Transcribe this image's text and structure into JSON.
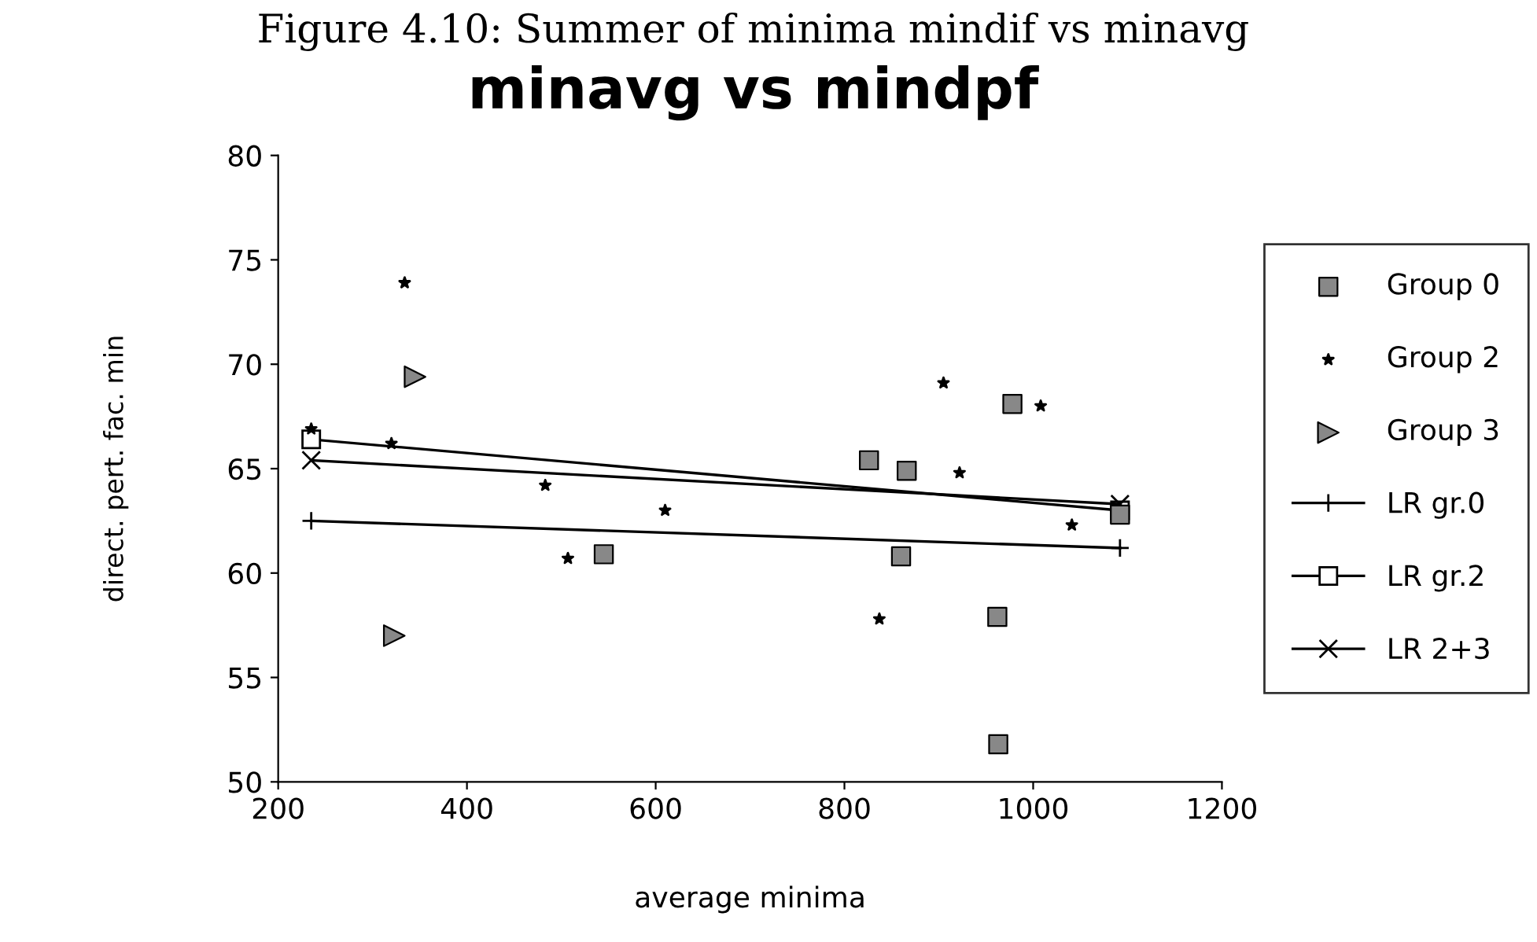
{
  "chart_data": {
    "type": "scatter",
    "title": "minavg vs mindpf",
    "annotations": [
      "Figure 4.10: Summer of minima mindif vs minavg"
    ],
    "xlabel": "average minima",
    "ylabel": "direct. pert. fac. min",
    "xlim": [
      200,
      1200
    ],
    "xticks": [
      200,
      400,
      600,
      800,
      1000,
      1200
    ],
    "ylim": [
      50,
      80
    ],
    "yticks": [
      50,
      55,
      60,
      65,
      70,
      75,
      80
    ],
    "grid": false,
    "legend": "right",
    "series": [
      {
        "name": "Group 0",
        "marker": "square",
        "color": "#888888",
        "x": [
          545,
          826,
          866,
          860,
          978,
          962,
          963,
          1092
        ],
        "values": [
          60.9,
          65.4,
          64.9,
          60.8,
          68.1,
          57.9,
          51.8,
          62.8
        ]
      },
      {
        "name": "Group 2",
        "marker": "star",
        "color": "#000000",
        "x": [
          235,
          320,
          334,
          483,
          507,
          610,
          837,
          905,
          922,
          1008,
          1041
        ],
        "values": [
          66.9,
          66.2,
          73.9,
          64.2,
          60.7,
          63.0,
          57.8,
          69.1,
          64.8,
          68.0,
          62.3
        ]
      },
      {
        "name": "Group 3",
        "marker": "triangle",
        "color": "#888888",
        "x": [
          323,
          345
        ],
        "values": [
          57.0,
          69.4
        ]
      },
      {
        "name": "LR gr.0",
        "type": "line",
        "marker": "plus",
        "color": "#000000",
        "x": [
          235,
          1092
        ],
        "values": [
          62.5,
          61.2
        ]
      },
      {
        "name": "LR gr.2",
        "type": "line",
        "marker": "square",
        "color": "#000000",
        "x": [
          235,
          1092
        ],
        "values": [
          66.4,
          63.0
        ]
      },
      {
        "name": "LR 2+3",
        "type": "line",
        "marker": "cross",
        "color": "#000000",
        "x": [
          235,
          1092
        ],
        "values": [
          65.4,
          63.3
        ]
      }
    ]
  }
}
